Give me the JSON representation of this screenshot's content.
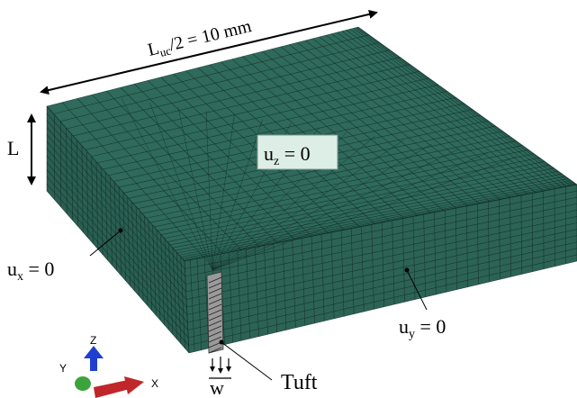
{
  "colors": {
    "mesh_fill": "#2f6a5c",
    "mesh_line": "#0f2a22",
    "tuft_fill": "#9a9a9a",
    "label_box": "#ddeee6",
    "axis_x": "#c0262a",
    "axis_y": "#3ca33c",
    "axis_z": "#1f3fd0"
  },
  "dimension_width": {
    "base": "L",
    "sub": "uc",
    "rest": "/2 = 10 mm"
  },
  "dimension_height": {
    "label": "L"
  },
  "bc_top": {
    "base": "u",
    "sub": "z",
    "rest": " = 0"
  },
  "bc_left": {
    "base": "u",
    "sub": "x",
    "rest": " = 0"
  },
  "bc_right": {
    "base": "u",
    "sub": "y",
    "rest": " = 0"
  },
  "tuft_label": "Tuft",
  "load_label": "w",
  "axes": {
    "x": "X",
    "y": "Y",
    "z": "Z"
  }
}
